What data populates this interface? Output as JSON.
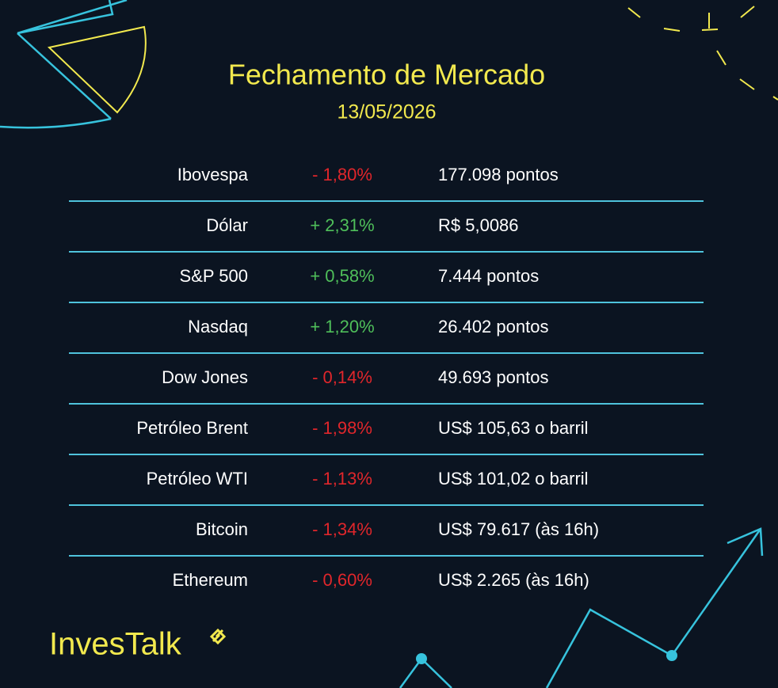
{
  "header": {
    "title": "Fechamento de Mercado",
    "date": "13/05/2026"
  },
  "table": {
    "rows": [
      {
        "name": "Ibovespa",
        "change": "- 1,80%",
        "value": "177.098 pontos",
        "color": "#e0262b"
      },
      {
        "name": "Dólar",
        "change": "+ 2,31%",
        "value": "R$ 5,0086",
        "color": "#4fbf5a"
      },
      {
        "name": "S&P 500",
        "change": "+ 0,58%",
        "value": "7.444 pontos",
        "color": "#4fbf5a"
      },
      {
        "name": "Nasdaq",
        "change": "+ 1,20%",
        "value": "26.402 pontos",
        "color": "#4fbf5a"
      },
      {
        "name": "Dow Jones",
        "change": "- 0,14%",
        "value": "49.693 pontos",
        "color": "#e0262b"
      },
      {
        "name": "Petróleo Brent",
        "change": "- 1,98%",
        "value": "US$ 105,63 o barril",
        "color": "#e0262b"
      },
      {
        "name": "Petróleo WTI",
        "change": "- 1,13%",
        "value": "US$ 101,02 o barril",
        "color": "#e0262b"
      },
      {
        "name": "Bitcoin",
        "change": "- 1,34%",
        "value": "US$ 79.617 (às 16h)",
        "color": "#e0262b"
      },
      {
        "name": "Ethereum",
        "change": "- 0,60%",
        "value": "US$ 2.265 (às 16h)",
        "color": "#e0262b"
      }
    ]
  },
  "footer": {
    "logo": "InvesTalk"
  }
}
